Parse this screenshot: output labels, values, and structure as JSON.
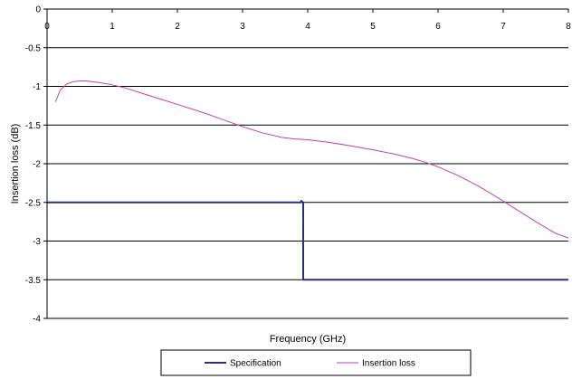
{
  "chart_data": {
    "type": "line",
    "xlabel": "Frequency (GHz)",
    "ylabel": "Insertion loss (dB)",
    "xlim": [
      0,
      8
    ],
    "ylim": [
      -4,
      0
    ],
    "x_ticks": [
      "0",
      "1",
      "2",
      "3",
      "4",
      "5",
      "6",
      "7",
      "8"
    ],
    "y_ticks": [
      "0",
      "-0.5",
      "-1",
      "-1.5",
      "-2",
      "-2.5",
      "-3",
      "-3.5",
      "-4"
    ],
    "grid": "horizontal",
    "legend_position": "bottom",
    "series": [
      {
        "name": "Specification",
        "color": "#2b2f7f",
        "x": [
          0,
          3.9,
          3.9,
          3.93,
          3.93,
          8
        ],
        "y": [
          -2.5,
          -2.5,
          -2.48,
          -2.5,
          -3.5,
          -3.5
        ]
      },
      {
        "name": "Insertion loss",
        "color": "#c040b0",
        "x": [
          0.13,
          0.2,
          0.3,
          0.4,
          0.5,
          0.6,
          0.8,
          1.0,
          1.2,
          1.5,
          1.8,
          2.1,
          2.4,
          2.7,
          3.0,
          3.3,
          3.6,
          3.8,
          4.0,
          4.3,
          4.6,
          5.0,
          5.3,
          5.6,
          5.8,
          6.0,
          6.3,
          6.6,
          6.9,
          7.2,
          7.5,
          7.8,
          8.0
        ],
        "y": [
          -1.2,
          -1.05,
          -0.97,
          -0.94,
          -0.93,
          -0.93,
          -0.95,
          -0.98,
          -1.02,
          -1.1,
          -1.18,
          -1.26,
          -1.34,
          -1.43,
          -1.52,
          -1.6,
          -1.66,
          -1.68,
          -1.69,
          -1.72,
          -1.76,
          -1.82,
          -1.87,
          -1.93,
          -1.98,
          -2.04,
          -2.15,
          -2.28,
          -2.43,
          -2.59,
          -2.75,
          -2.9,
          -2.96
        ]
      }
    ]
  }
}
